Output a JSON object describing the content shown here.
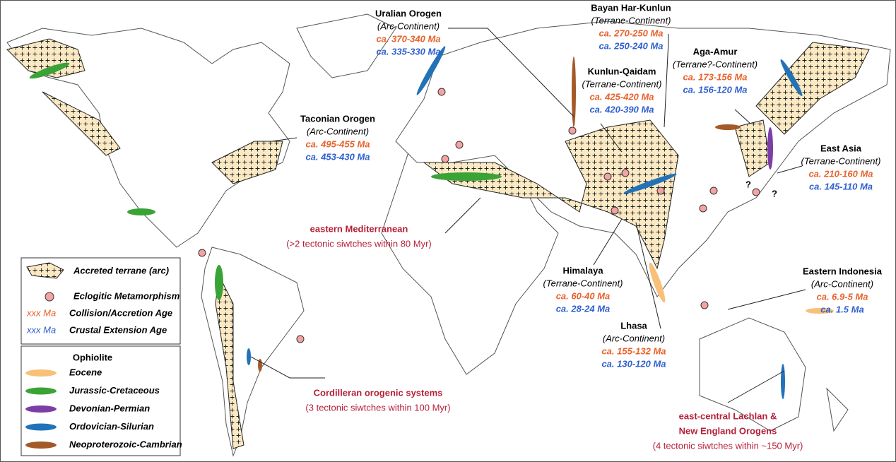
{
  "regions": [
    {
      "name": "Uralian Orogen",
      "type": "(Arc-Continent)",
      "collision": "ca. 370-340 Ma",
      "extension": "ca. 335-330 Ma"
    },
    {
      "name": "Bayan Har-Kunlun",
      "type": "(Terrane-Continent)",
      "collision": "ca. 270-250 Ma",
      "extension": "ca. 250-240 Ma"
    },
    {
      "name": "Aga-Amur",
      "type": "(Terrane?-Continent)",
      "collision": "ca. 173-156 Ma",
      "extension": "ca. 156-120 Ma"
    },
    {
      "name": "Kunlun-Qaidam",
      "type": "(Terrane-Continent)",
      "collision": "ca. 425-420 Ma",
      "extension": "ca. 420-390 Ma"
    },
    {
      "name": "Taconian Orogen",
      "type": "(Arc-Continent)",
      "collision": "ca. 495-455 Ma",
      "extension": "ca. 453-430 Ma"
    },
    {
      "name": "East Asia",
      "type": "(Terrane-Continent)",
      "collision": "ca. 210-160 Ma",
      "extension": "ca. 145-110 Ma"
    },
    {
      "name": "Himalaya",
      "type": "(Terrane-Continent)",
      "collision": "ca. 60-40 Ma",
      "extension": "ca. 28-24 Ma"
    },
    {
      "name": "Eastern Indonesia",
      "type": "(Arc-Continent)",
      "collision": "ca. 6.9-5 Ma",
      "extension": "ca. 1.5 Ma"
    },
    {
      "name": "Lhasa",
      "type": "(Arc-Continent)",
      "collision": "ca. 155-132 Ma",
      "extension": "ca. 130-120 Ma"
    }
  ],
  "highlights": [
    {
      "lines": [
        "eastern Mediterranean"
      ],
      "note": "(>2 tectonic siwtches within 80 Myr)"
    },
    {
      "lines": [
        "Cordilleran orogenic systems"
      ],
      "note": "(3 tectonic siwtches within 100 Myr)"
    },
    {
      "lines": [
        "east-central Lachlan &",
        "New England Orogens"
      ],
      "note": "(4 tectonic siwtches within ~150 Myr)"
    }
  ],
  "question_marks": [
    "?",
    "?"
  ],
  "legend": {
    "items": [
      {
        "label": "Accreted terrane (arc)"
      },
      {
        "label": "Eclogitic Metamorphism"
      },
      {
        "symbol": "xxx Ma",
        "label": "Collision/Accretion Age"
      },
      {
        "symbol": "xxx Ma",
        "label": "Crustal Extension Age"
      }
    ],
    "ophiolite_title": "Ophiolite",
    "ophiolites": [
      "Eocene",
      "Jurassic-Cretaceous",
      "Devonian-Permian",
      "Ordovician-Silurian",
      "Neoproterozoic-Cambrian"
    ]
  }
}
